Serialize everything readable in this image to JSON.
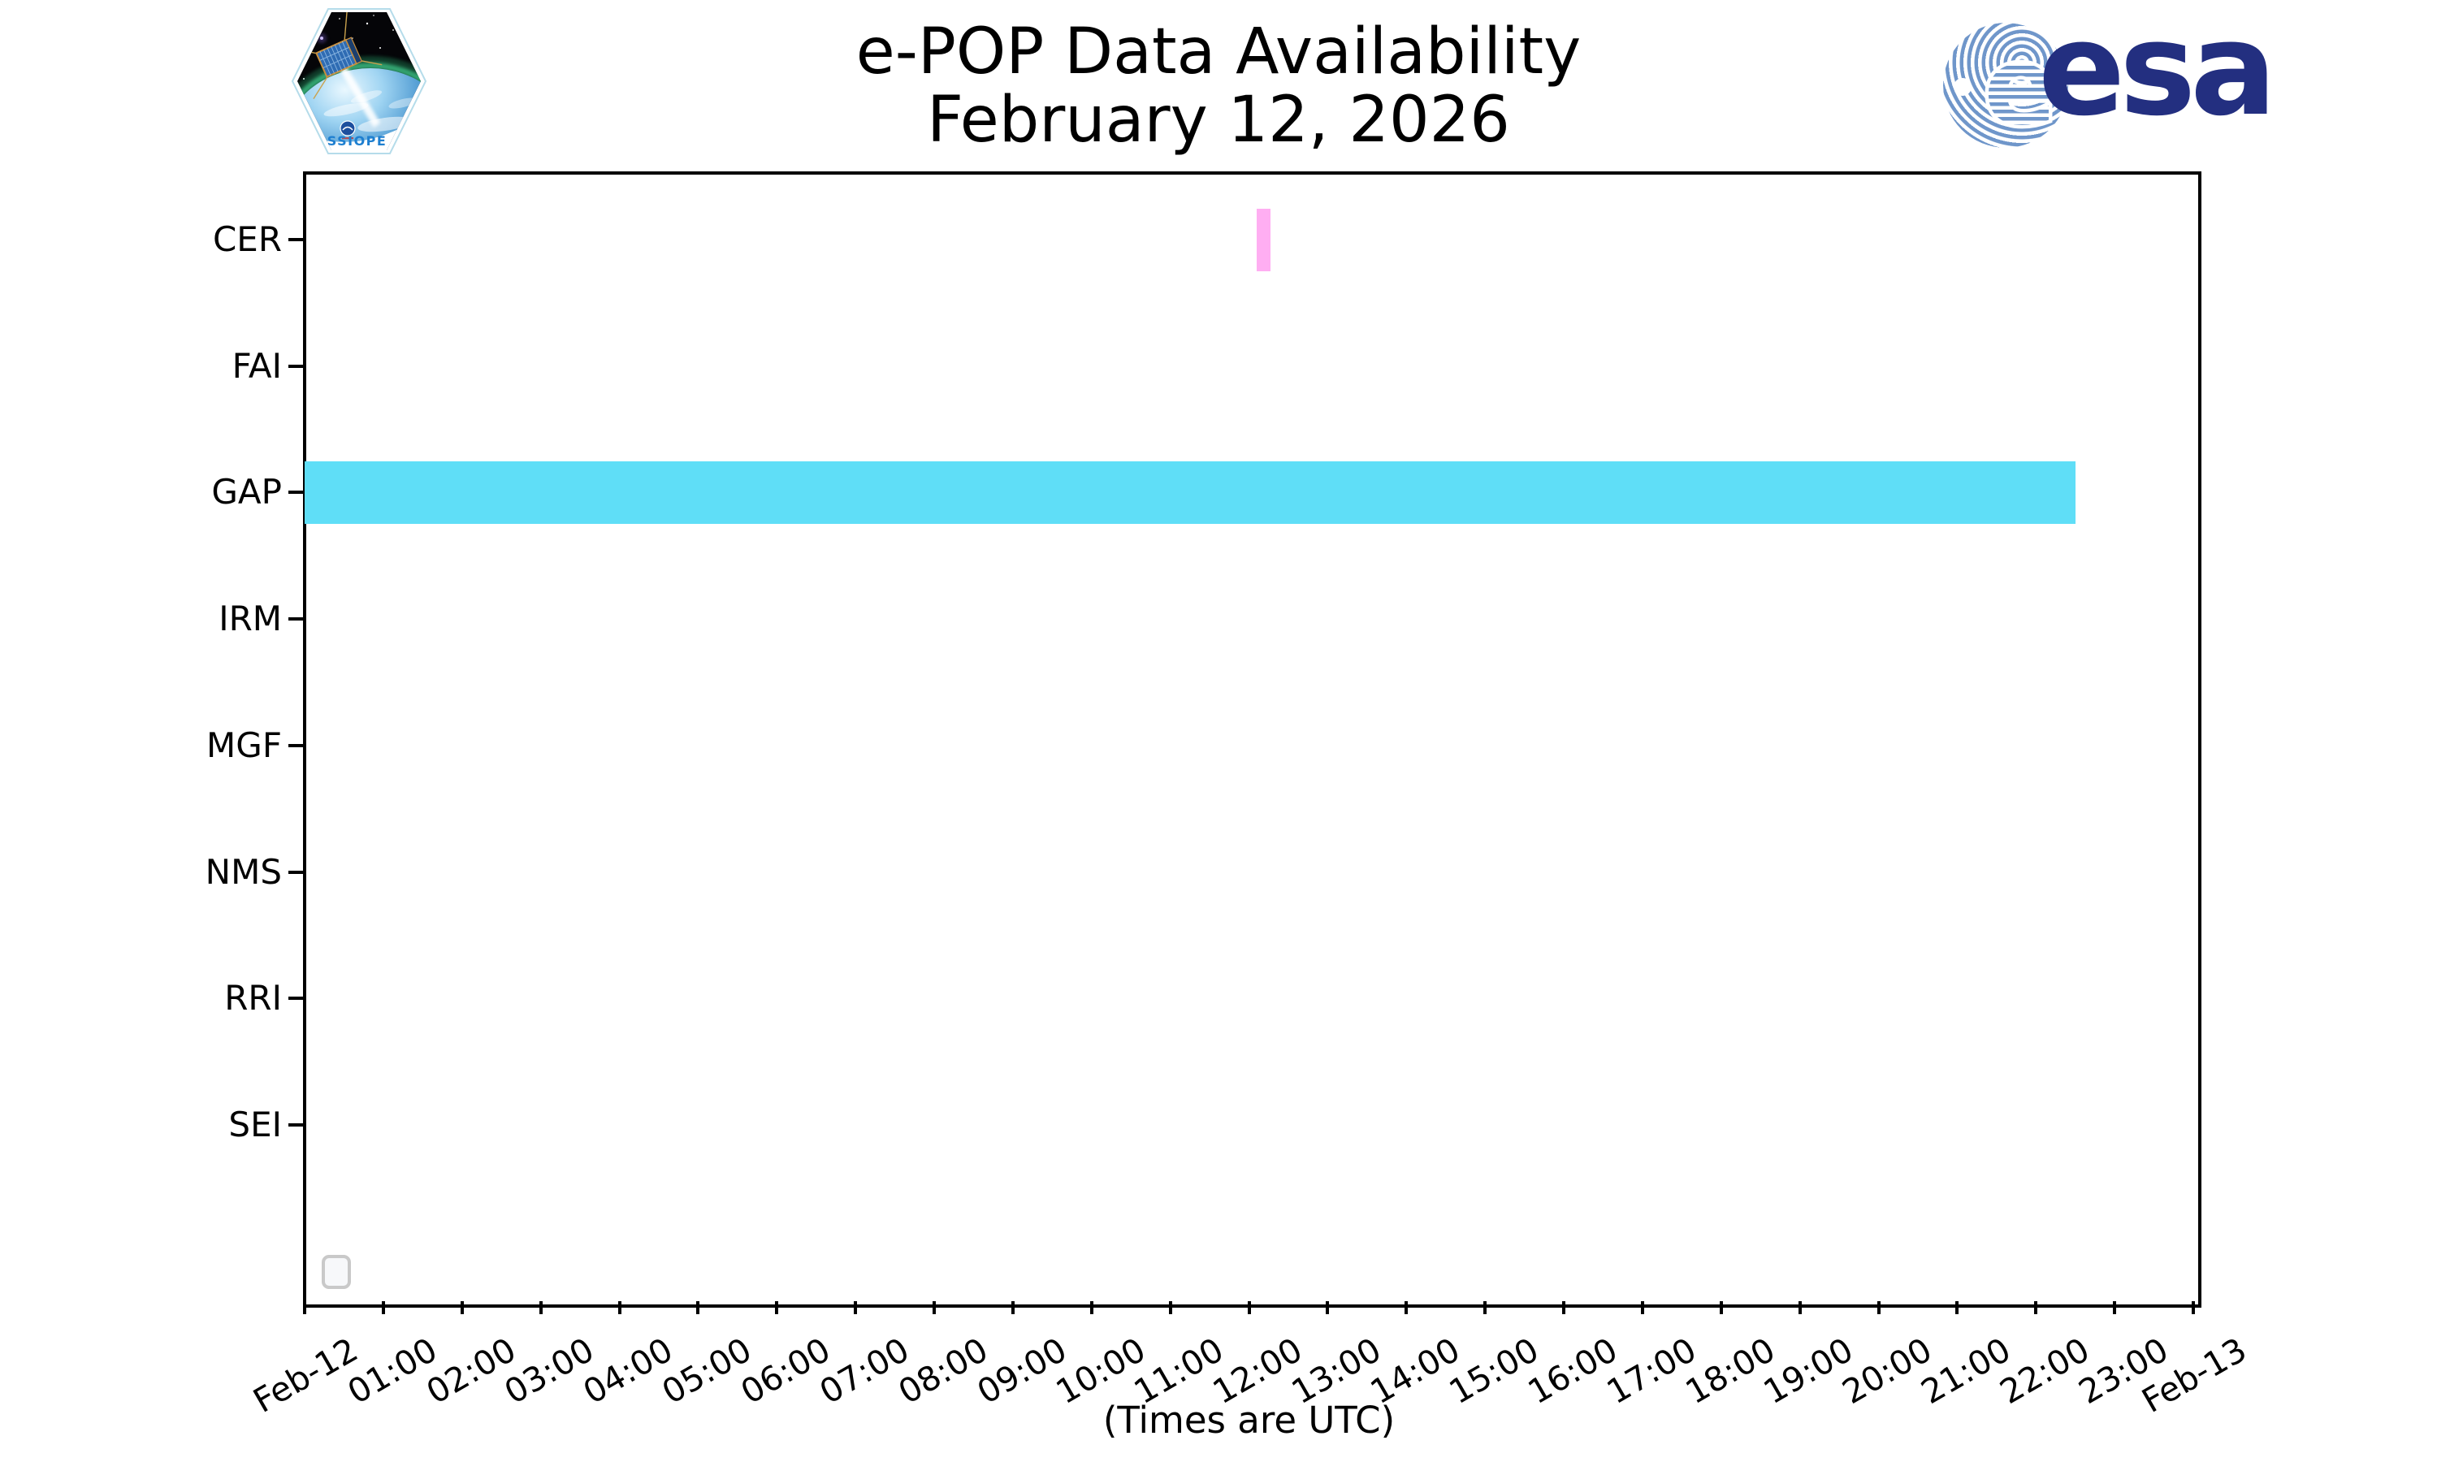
{
  "header": {
    "title_line1": "e-POP Data Availability",
    "title_line2": "February 12, 2026",
    "cassiope_logo": {
      "wordmark": "CASSIOPE"
    },
    "esa_logo": {
      "wordmark": "esa"
    }
  },
  "chart_data": {
    "type": "bar",
    "orientation": "horizontal-timeline",
    "title": "e-POP Data Availability",
    "subtitle": "February 12, 2026",
    "xlabel": "(Times are UTC)",
    "grid": false,
    "legend": {
      "position": "lower left",
      "entries": []
    },
    "x_axis": {
      "range_hours": [
        0,
        24
      ],
      "tick_labels": [
        "Feb-12",
        "01:00",
        "02:00",
        "03:00",
        "04:00",
        "05:00",
        "06:00",
        "07:00",
        "08:00",
        "09:00",
        "10:00",
        "11:00",
        "12:00",
        "13:00",
        "14:00",
        "15:00",
        "16:00",
        "17:00",
        "18:00",
        "19:00",
        "20:00",
        "21:00",
        "22:00",
        "23:00",
        "Feb-13"
      ]
    },
    "y_axis": {
      "categories": [
        "CER",
        "FAI",
        "GAP",
        "IRM",
        "MGF",
        "NMS",
        "RRI",
        "SEI"
      ]
    },
    "bars": [
      {
        "instrument": "CER",
        "start": "12:06",
        "end": "12:16",
        "start_hour": 12.1,
        "end_hour": 12.27,
        "color": "#ffaef2"
      },
      {
        "instrument": "GAP",
        "start": "00:00",
        "end": "22:30",
        "start_hour": 0.0,
        "end_hour": 22.5,
        "color": "#5fdef7"
      }
    ]
  },
  "colors": {
    "cer_bar": "#ffaef2",
    "gap_bar": "#5fdef7",
    "axis": "#000000",
    "legend_border": "#c9c9c9",
    "esa_navy": "#232f80",
    "esa_stripe_blue": "#6f96ca",
    "cassiope_text_blue": "#1e7fd0"
  }
}
